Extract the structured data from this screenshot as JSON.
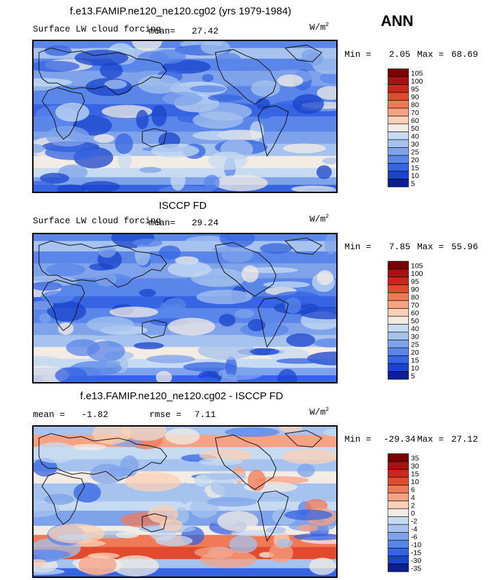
{
  "season": "ANN",
  "units_base": "W/m",
  "units_sup": "2",
  "chart_data": [
    {
      "type": "heatmap",
      "title": "f.e13.FAMIP.ne120_ne120.cg02 (yrs 1979-1984)",
      "variable": "Surface LW cloud forcing",
      "mean_label": "mean=",
      "mean": "27.42",
      "min_label": "Min =",
      "min": "2.05",
      "max_label": "Max =",
      "max": "68.69",
      "colorbar_levels": [
        "105",
        "100",
        "95",
        "90",
        "80",
        "70",
        "60",
        "50",
        "40",
        "30",
        "25",
        "20",
        "15",
        "10",
        "5"
      ],
      "colors": [
        "#7a0000",
        "#a51212",
        "#c8281c",
        "#e24a2e",
        "#f07a55",
        "#f7a282",
        "#fbd0b6",
        "#f3ece4",
        "#c6dbf2",
        "#a5c3ee",
        "#7fa3eb",
        "#5a86ea",
        "#3764e2",
        "#1a44cc",
        "#0a1f92"
      ]
    },
    {
      "type": "heatmap",
      "title": "ISCCP FD",
      "variable": "Surface LW cloud forcing",
      "mean_label": "mean=",
      "mean": "29.24",
      "min_label": "Min =",
      "min": "7.85",
      "max_label": "Max =",
      "max": "55.96",
      "colorbar_levels": [
        "105",
        "100",
        "95",
        "90",
        "80",
        "70",
        "60",
        "50",
        "40",
        "30",
        "25",
        "20",
        "15",
        "10",
        "5"
      ],
      "colors": [
        "#7a0000",
        "#a51212",
        "#c8281c",
        "#e24a2e",
        "#f07a55",
        "#f7a282",
        "#fbd0b6",
        "#f3ece4",
        "#c6dbf2",
        "#a5c3ee",
        "#7fa3eb",
        "#5a86ea",
        "#3764e2",
        "#1a44cc",
        "#0a1f92"
      ]
    },
    {
      "type": "heatmap",
      "title": "f.e13.FAMIP.ne120_ne120.cg02 - ISCCP FD",
      "mean_label": "mean =",
      "mean": "-1.82",
      "rmse_label": "rmse =",
      "rmse": "7.11",
      "min_label": "Min =",
      "min": "-29.34",
      "max_label": "Max =",
      "max": "27.12",
      "colorbar_levels": [
        "35",
        "30",
        "15",
        "10",
        "6",
        "4",
        "2",
        "0",
        "-2",
        "-4",
        "-6",
        "-10",
        "-15",
        "-30",
        "-35"
      ],
      "colors": [
        "#7a0000",
        "#a51212",
        "#c8281c",
        "#e24a2e",
        "#f07a55",
        "#f7a282",
        "#fbd0b6",
        "#f3ece4",
        "#c6dbf2",
        "#a5c3ee",
        "#7fa3eb",
        "#5a86ea",
        "#3764e2",
        "#1a44cc",
        "#0a1f92"
      ]
    }
  ]
}
